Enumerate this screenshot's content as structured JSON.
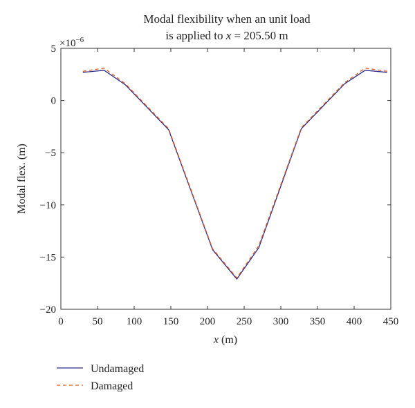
{
  "chart_data": {
    "type": "line",
    "title_line1": "Modal flexibility when an unit load",
    "title_line2_prefix": "is applied to ",
    "title_line2_var": "x",
    "title_line2_suffix": " = 205.50 m",
    "xlabel_var": "x",
    "xlabel_unit": " (m)",
    "ylabel": "Modal flex. (m)",
    "y_multiplier_base": "×10",
    "y_multiplier_exp": "−6",
    "xlim": [
      0,
      450
    ],
    "ylim": [
      -20,
      5
    ],
    "x_ticks": [
      0,
      50,
      100,
      150,
      200,
      250,
      300,
      350,
      400,
      450
    ],
    "x_tick_labels": [
      "0",
      "50",
      "100",
      "150",
      "200",
      "250",
      "300",
      "350",
      "400",
      "450"
    ],
    "y_ticks": [
      5,
      0,
      -5,
      -10,
      -15,
      -20
    ],
    "y_tick_labels": [
      "5",
      "0",
      "−5",
      "−10",
      "−15",
      "−20"
    ],
    "grid": false,
    "legend_position": "bottom-left",
    "series": [
      {
        "name": "Undamaged",
        "color": "#2b2b8c",
        "dash": "solid",
        "x": [
          30,
          59,
          88,
          147,
          207,
          240,
          270,
          328,
          387,
          415,
          445
        ],
        "y": [
          2.7,
          2.9,
          1.5,
          -2.8,
          -14.3,
          -17.1,
          -14.1,
          -2.7,
          1.6,
          2.9,
          2.7
        ]
      },
      {
        "name": "Damaged",
        "color": "#e05a1e",
        "dash": "dashed",
        "x": [
          30,
          59,
          88,
          147,
          207,
          240,
          270,
          328,
          387,
          415,
          445
        ],
        "y": [
          2.8,
          3.1,
          1.6,
          -2.7,
          -14.2,
          -17.0,
          -13.9,
          -2.6,
          1.7,
          3.1,
          2.8
        ]
      }
    ]
  }
}
